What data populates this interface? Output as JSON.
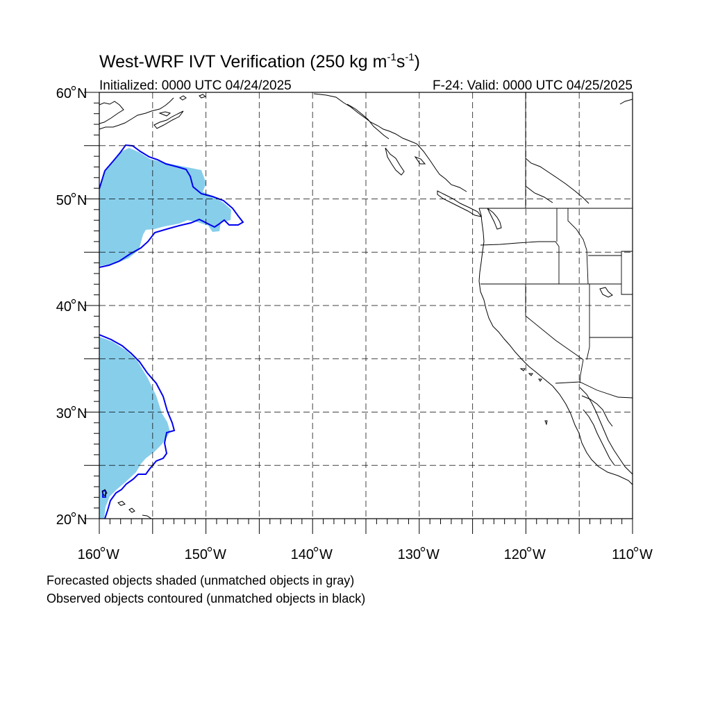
{
  "title": {
    "main": "West-WRF IVT Verification (250 kg m",
    "sup1": "-1",
    "mid": "s",
    "sup2": "-1",
    "end": ")"
  },
  "subtitle_left": "Initialized: 0000 UTC 04/24/2025",
  "subtitle_right": "F-24: Valid: 0000 UTC 04/25/2025",
  "lat_labels": [
    {
      "deg": "60",
      "suffix": "N"
    },
    {
      "deg": "50",
      "suffix": "N"
    },
    {
      "deg": "40",
      "suffix": "N"
    },
    {
      "deg": "30",
      "suffix": "N"
    },
    {
      "deg": "20",
      "suffix": "N"
    }
  ],
  "lon_labels": [
    {
      "deg": "160",
      "suffix": "W"
    },
    {
      "deg": "150",
      "suffix": "W"
    },
    {
      "deg": "140",
      "suffix": "W"
    },
    {
      "deg": "130",
      "suffix": "W"
    },
    {
      "deg": "120",
      "suffix": "W"
    },
    {
      "deg": "110",
      "suffix": "W"
    }
  ],
  "notes": {
    "line1": "Forecasted objects shaded (unmatched objects in gray)",
    "line2": "Observed objects contoured (unmatched objects in black)"
  },
  "map": {
    "lon_range": [
      -160,
      -110
    ],
    "lat_range": [
      20,
      60
    ],
    "grid_lons": [
      -155,
      -150,
      -145,
      -140,
      -135,
      -130,
      -125,
      -120,
      -115
    ],
    "grid_lats": [
      25,
      30,
      35,
      40,
      45,
      50,
      55
    ],
    "colors": {
      "forecast_shade": "#87ceeb",
      "observed_contour": "#0000ee",
      "coast": "#000000"
    }
  }
}
